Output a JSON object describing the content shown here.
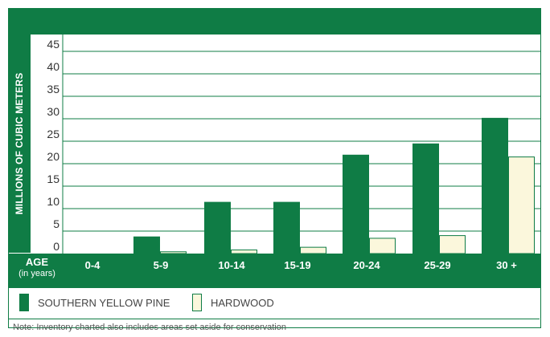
{
  "colors": {
    "pine": "#0f7c45",
    "hardwood": "#fbf7dc",
    "grid": "#0f7c45"
  },
  "chart_data": {
    "type": "bar",
    "xlabel": "AGE",
    "xlabel_sub": "(in years)",
    "ylabel": "MILLIONS OF CUBIC METERS",
    "ylim": [
      0,
      45
    ],
    "yticks": [
      0,
      5,
      10,
      15,
      20,
      25,
      30,
      35,
      40,
      45
    ],
    "categories": [
      "0-4",
      "5-9",
      "10-14",
      "15-19",
      "20-24",
      "25-29",
      "30 +"
    ],
    "series": [
      {
        "name": "SOUTHERN YELLOW PINE",
        "values": [
          0,
          3.8,
          11.5,
          11.5,
          22,
          24.5,
          30.2
        ]
      },
      {
        "name": "HARDWOOD",
        "values": [
          0,
          0.4,
          0.8,
          1.4,
          3.4,
          4.0,
          21.5
        ]
      }
    ],
    "legend_position": "bottom",
    "note": "Note: Inventory charted also includes areas set aside for conservation"
  }
}
